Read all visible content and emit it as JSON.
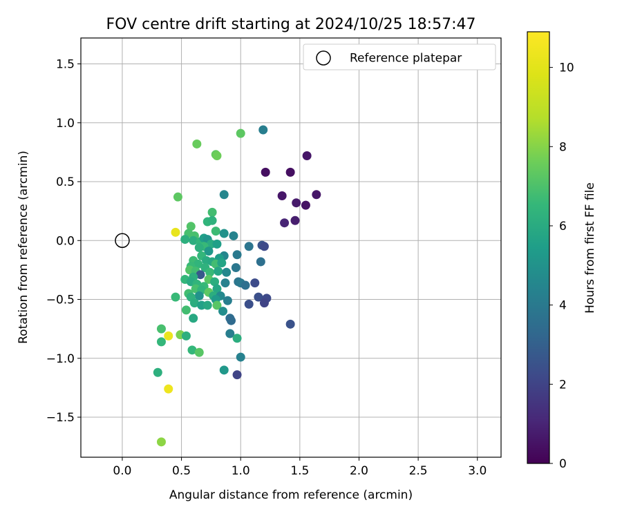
{
  "chart_data": {
    "type": "scatter",
    "title": "FOV centre drift starting at 2024/10/25 18:57:47",
    "xlabel": "Angular distance from reference (arcmin)",
    "ylabel": "Rotation from reference (arcmin)",
    "xlim": [
      -0.35,
      3.2
    ],
    "ylim": [
      -1.84,
      1.72
    ],
    "xticks": [
      "0.0",
      "0.5",
      "1.0",
      "1.5",
      "2.0",
      "2.5",
      "3.0"
    ],
    "xtick_values": [
      0.0,
      0.5,
      1.0,
      1.5,
      2.0,
      2.5,
      3.0
    ],
    "yticks": [
      "−1.5",
      "−1.0",
      "−0.5",
      "0.0",
      "0.5",
      "1.0",
      "1.5"
    ],
    "ytick_values": [
      -1.5,
      -1.0,
      -0.5,
      0.0,
      0.5,
      1.0,
      1.5
    ],
    "grid": true,
    "legend": {
      "position": "top-right",
      "label": "Reference platepar"
    },
    "reference_point": {
      "x": 0.0,
      "y": 0.0
    },
    "colorbar": {
      "label": "Hours from first FF file",
      "range": [
        0,
        10.9
      ],
      "ticks": [
        "0",
        "2",
        "4",
        "6",
        "8",
        "10"
      ],
      "tick_values": [
        0,
        2,
        4,
        6,
        8,
        10
      ],
      "colormap": "viridis"
    },
    "points": [
      {
        "x": 1.19,
        "y": 0.94,
        "h": 4.2
      },
      {
        "x": 1.0,
        "y": 0.91,
        "h": 7.3
      },
      {
        "x": 0.63,
        "y": 0.82,
        "h": 7.5
      },
      {
        "x": 0.79,
        "y": 0.73,
        "h": 7.4
      },
      {
        "x": 0.8,
        "y": 0.72,
        "h": 7.6
      },
      {
        "x": 1.56,
        "y": 0.72,
        "h": 0.6
      },
      {
        "x": 1.21,
        "y": 0.58,
        "h": 0.4
      },
      {
        "x": 1.42,
        "y": 0.58,
        "h": 0.4
      },
      {
        "x": 1.64,
        "y": 0.39,
        "h": 0.6
      },
      {
        "x": 0.86,
        "y": 0.39,
        "h": 4.5
      },
      {
        "x": 1.35,
        "y": 0.38,
        "h": 0.6
      },
      {
        "x": 0.47,
        "y": 0.37,
        "h": 7.3
      },
      {
        "x": 1.47,
        "y": 0.32,
        "h": 0.7
      },
      {
        "x": 1.55,
        "y": 0.3,
        "h": 0.5
      },
      {
        "x": 0.76,
        "y": 0.24,
        "h": 6.8
      },
      {
        "x": 1.46,
        "y": 0.17,
        "h": 0.8
      },
      {
        "x": 1.37,
        "y": 0.15,
        "h": 1.0
      },
      {
        "x": 0.72,
        "y": 0.16,
        "h": 6.4
      },
      {
        "x": 0.76,
        "y": 0.17,
        "h": 6.3
      },
      {
        "x": 0.58,
        "y": 0.12,
        "h": 7.1
      },
      {
        "x": 0.45,
        "y": 0.07,
        "h": 10.2
      },
      {
        "x": 0.56,
        "y": 0.06,
        "h": 6.9
      },
      {
        "x": 0.79,
        "y": 0.08,
        "h": 6.7
      },
      {
        "x": 0.86,
        "y": 0.06,
        "h": 5.0
      },
      {
        "x": 0.94,
        "y": 0.04,
        "h": 4.4
      },
      {
        "x": 0.61,
        "y": 0.04,
        "h": 6.9
      },
      {
        "x": 0.53,
        "y": 0.01,
        "h": 6.2
      },
      {
        "x": 0.6,
        "y": 0.0,
        "h": 6.1
      },
      {
        "x": 0.66,
        "y": -0.01,
        "h": 6.4
      },
      {
        "x": 0.69,
        "y": 0.02,
        "h": 5.5
      },
      {
        "x": 0.72,
        "y": 0.01,
        "h": 5.1
      },
      {
        "x": 0.75,
        "y": -0.03,
        "h": 6.0
      },
      {
        "x": 0.8,
        "y": -0.03,
        "h": 5.5
      },
      {
        "x": 0.69,
        "y": -0.05,
        "h": 6.6
      },
      {
        "x": 0.65,
        "y": -0.06,
        "h": 6.2
      },
      {
        "x": 0.73,
        "y": -0.09,
        "h": 5.2
      },
      {
        "x": 1.07,
        "y": -0.05,
        "h": 3.8
      },
      {
        "x": 1.18,
        "y": -0.04,
        "h": 2.6
      },
      {
        "x": 1.2,
        "y": -0.05,
        "h": 2.2
      },
      {
        "x": 0.97,
        "y": -0.12,
        "h": 4.0
      },
      {
        "x": 0.86,
        "y": -0.13,
        "h": 4.5
      },
      {
        "x": 0.82,
        "y": -0.15,
        "h": 5.4
      },
      {
        "x": 0.67,
        "y": -0.13,
        "h": 6.5
      },
      {
        "x": 0.71,
        "y": -0.17,
        "h": 6.0
      },
      {
        "x": 0.6,
        "y": -0.17,
        "h": 6.7
      },
      {
        "x": 0.64,
        "y": -0.2,
        "h": 6.4
      },
      {
        "x": 0.76,
        "y": -0.18,
        "h": 5.9
      },
      {
        "x": 0.58,
        "y": -0.22,
        "h": 6.6
      },
      {
        "x": 0.79,
        "y": -0.2,
        "h": 6.8
      },
      {
        "x": 0.84,
        "y": -0.19,
        "h": 5.7
      },
      {
        "x": 1.17,
        "y": -0.18,
        "h": 3.6
      },
      {
        "x": 0.7,
        "y": -0.23,
        "h": 6.3
      },
      {
        "x": 0.57,
        "y": -0.25,
        "h": 7.1
      },
      {
        "x": 0.62,
        "y": -0.26,
        "h": 6.8
      },
      {
        "x": 0.96,
        "y": -0.23,
        "h": 3.9
      },
      {
        "x": 0.74,
        "y": -0.27,
        "h": 6.6
      },
      {
        "x": 0.81,
        "y": -0.26,
        "h": 5.8
      },
      {
        "x": 0.88,
        "y": -0.27,
        "h": 4.6
      },
      {
        "x": 0.66,
        "y": -0.29,
        "h": 2.7
      },
      {
        "x": 0.6,
        "y": -0.31,
        "h": 6.2
      },
      {
        "x": 0.53,
        "y": -0.33,
        "h": 6.5
      },
      {
        "x": 0.58,
        "y": -0.35,
        "h": 6.0
      },
      {
        "x": 0.73,
        "y": -0.33,
        "h": 7.2
      },
      {
        "x": 0.78,
        "y": -0.35,
        "h": 6.1
      },
      {
        "x": 0.63,
        "y": -0.37,
        "h": 6.4
      },
      {
        "x": 0.87,
        "y": -0.36,
        "h": 4.3
      },
      {
        "x": 0.98,
        "y": -0.35,
        "h": 3.8
      },
      {
        "x": 1.0,
        "y": -0.36,
        "h": 4.0
      },
      {
        "x": 1.04,
        "y": -0.38,
        "h": 3.6
      },
      {
        "x": 1.12,
        "y": -0.36,
        "h": 2.3
      },
      {
        "x": 0.69,
        "y": -0.39,
        "h": 6.6
      },
      {
        "x": 0.62,
        "y": -0.41,
        "h": 6.9
      },
      {
        "x": 0.67,
        "y": -0.42,
        "h": 6.4
      },
      {
        "x": 0.8,
        "y": -0.41,
        "h": 5.8
      },
      {
        "x": 0.73,
        "y": -0.44,
        "h": 7.3
      },
      {
        "x": 0.56,
        "y": -0.45,
        "h": 6.8
      },
      {
        "x": 0.65,
        "y": -0.47,
        "h": 5.0
      },
      {
        "x": 0.77,
        "y": -0.47,
        "h": 6.1
      },
      {
        "x": 0.83,
        "y": -0.47,
        "h": 4.6
      },
      {
        "x": 0.58,
        "y": -0.48,
        "h": 6.3
      },
      {
        "x": 0.45,
        "y": -0.48,
        "h": 6.6
      },
      {
        "x": 0.79,
        "y": -0.5,
        "h": 5.3
      },
      {
        "x": 0.89,
        "y": -0.51,
        "h": 4.2
      },
      {
        "x": 1.15,
        "y": -0.48,
        "h": 2.4
      },
      {
        "x": 1.22,
        "y": -0.49,
        "h": 2.2
      },
      {
        "x": 1.2,
        "y": -0.53,
        "h": 2.0
      },
      {
        "x": 1.07,
        "y": -0.54,
        "h": 2.4
      },
      {
        "x": 0.61,
        "y": -0.53,
        "h": 6.1
      },
      {
        "x": 0.67,
        "y": -0.55,
        "h": 5.6
      },
      {
        "x": 0.72,
        "y": -0.55,
        "h": 5.9
      },
      {
        "x": 0.8,
        "y": -0.55,
        "h": 7.2
      },
      {
        "x": 0.54,
        "y": -0.59,
        "h": 6.8
      },
      {
        "x": 0.85,
        "y": -0.6,
        "h": 4.8
      },
      {
        "x": 0.6,
        "y": -0.66,
        "h": 5.9
      },
      {
        "x": 0.91,
        "y": -0.66,
        "h": 3.5
      },
      {
        "x": 0.92,
        "y": -0.68,
        "h": 3.4
      },
      {
        "x": 1.42,
        "y": -0.71,
        "h": 2.5
      },
      {
        "x": 0.33,
        "y": -0.75,
        "h": 6.9
      },
      {
        "x": 0.39,
        "y": -0.81,
        "h": 10.3
      },
      {
        "x": 0.49,
        "y": -0.8,
        "h": 7.8
      },
      {
        "x": 0.54,
        "y": -0.81,
        "h": 6.2
      },
      {
        "x": 0.91,
        "y": -0.79,
        "h": 4.2
      },
      {
        "x": 0.97,
        "y": -0.83,
        "h": 6.1
      },
      {
        "x": 0.33,
        "y": -0.86,
        "h": 6.5
      },
      {
        "x": 0.59,
        "y": -0.93,
        "h": 6.5
      },
      {
        "x": 0.65,
        "y": -0.95,
        "h": 7.2
      },
      {
        "x": 1.0,
        "y": -0.99,
        "h": 4.3
      },
      {
        "x": 0.86,
        "y": -1.1,
        "h": 5.2
      },
      {
        "x": 0.3,
        "y": -1.12,
        "h": 6.2
      },
      {
        "x": 0.97,
        "y": -1.14,
        "h": 2.0
      },
      {
        "x": 0.39,
        "y": -1.26,
        "h": 10.4
      },
      {
        "x": 0.33,
        "y": -1.71,
        "h": 8.1
      }
    ]
  }
}
